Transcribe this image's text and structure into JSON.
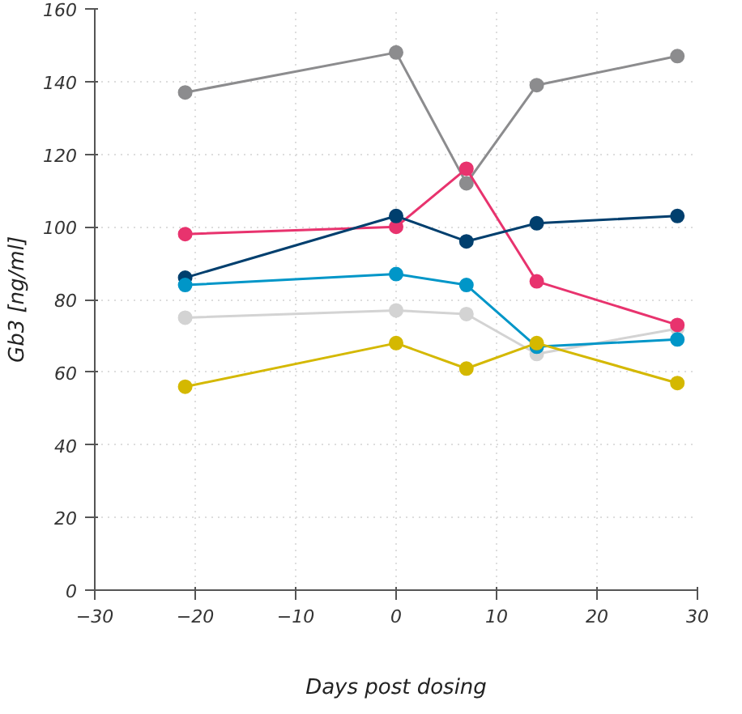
{
  "chart_data": {
    "type": "line",
    "xlabel": "Days post dosing",
    "ylabel": "Gb3 [ng/ml]",
    "xlim": [
      -30,
      30
    ],
    "xticks": [
      -30,
      -20,
      -10,
      0,
      10,
      20,
      30
    ],
    "ylim": [
      0,
      160
    ],
    "yticks": [
      0,
      20,
      40,
      60,
      80,
      100,
      120,
      140,
      160
    ],
    "grid": true,
    "marker": "circle",
    "line_style": "solid",
    "x": [
      -21,
      0,
      7,
      14,
      28
    ],
    "series": [
      {
        "color": "#d3d3d3",
        "values": [
          75,
          77,
          76,
          65,
          72
        ]
      },
      {
        "color": "#8c8c8e",
        "values": [
          137,
          148,
          112,
          139,
          147
        ]
      },
      {
        "color": "#e8336e",
        "values": [
          98,
          100,
          116,
          85,
          73
        ]
      },
      {
        "color": "#003f6e",
        "values": [
          86,
          103,
          96,
          101,
          103
        ]
      },
      {
        "color": "#0096c8",
        "values": [
          84,
          87,
          84,
          67,
          69
        ]
      },
      {
        "color": "#d4b800",
        "values": [
          56,
          68,
          61,
          68,
          57
        ]
      }
    ]
  }
}
